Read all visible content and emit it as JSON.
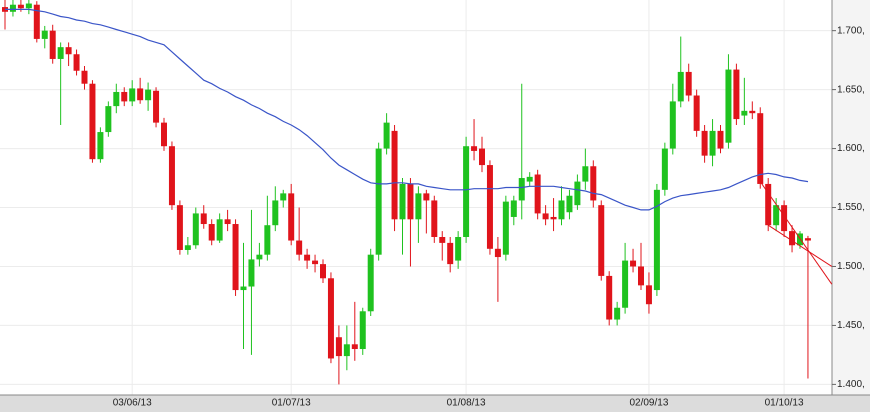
{
  "chart_data": {
    "type": "candlestick",
    "categories": [
      null,
      null,
      null,
      null,
      null,
      null,
      null,
      null,
      null,
      null,
      null,
      null,
      null,
      null,
      null,
      null,
      "03/06/13",
      null,
      null,
      null,
      null,
      null,
      null,
      null,
      null,
      null,
      null,
      null,
      null,
      null,
      null,
      null,
      null,
      null,
      null,
      null,
      "01/07/13",
      null,
      null,
      null,
      null,
      null,
      null,
      null,
      null,
      null,
      null,
      null,
      null,
      null,
      null,
      null,
      null,
      null,
      null,
      null,
      null,
      null,
      "01/08/13",
      null,
      null,
      null,
      null,
      null,
      null,
      null,
      null,
      null,
      null,
      null,
      null,
      null,
      null,
      null,
      null,
      null,
      null,
      null,
      null,
      null,
      null,
      "02/09/13",
      null,
      null,
      null,
      null,
      null,
      null,
      null,
      null,
      null,
      null,
      null,
      null,
      null,
      null,
      null,
      null,
      "01/10/13",
      null,
      null,
      null
    ],
    "open": [
      1.72,
      1.716,
      1.722,
      1.719,
      1.722,
      1.693,
      1.7,
      1.676,
      1.686,
      1.68,
      1.666,
      1.655,
      1.591,
      1.614,
      1.636,
      1.648,
      1.64,
      1.651,
      1.641,
      1.649,
      1.622,
      1.602,
      1.552,
      1.514,
      1.518,
      1.545,
      1.536,
      1.522,
      1.54,
      1.536,
      1.48,
      1.483,
      1.506,
      1.51,
      1.535,
      1.556,
      1.562,
      1.522,
      1.51,
      1.505,
      1.502,
      1.49,
      1.44,
      1.424,
      1.434,
      1.43,
      1.462,
      1.51,
      1.6,
      1.615,
      1.54,
      1.57,
      1.54,
      1.562,
      1.556,
      1.525,
      1.52,
      1.505,
      1.525,
      1.602,
      1.6,
      1.586,
      1.515,
      1.51,
      1.542,
      1.556,
      1.572,
      1.578,
      1.545,
      1.542,
      1.54,
      1.546,
      1.552,
      1.572,
      1.585,
      1.552,
      1.492,
      1.455,
      1.465,
      1.505,
      1.5,
      1.484,
      1.48,
      1.565,
      1.6,
      1.64,
      1.665,
      1.645,
      1.615,
      1.594,
      1.615,
      1.605,
      1.667,
      1.628,
      1.632,
      1.63,
      1.57,
      1.535,
      1.552,
      1.53,
      1.518,
      1.524
    ],
    "high": [
      1.726,
      1.726,
      1.726,
      1.726,
      1.725,
      1.704,
      1.705,
      1.69,
      1.69,
      1.684,
      1.67,
      1.658,
      1.618,
      1.64,
      1.655,
      1.652,
      1.658,
      1.66,
      1.656,
      1.652,
      1.626,
      1.606,
      1.556,
      1.525,
      1.55,
      1.552,
      1.54,
      1.545,
      1.548,
      1.54,
      1.52,
      1.548,
      1.52,
      1.56,
      1.568,
      1.565,
      1.57,
      1.55,
      1.515,
      1.51,
      1.506,
      1.495,
      1.45,
      1.45,
      1.47,
      1.465,
      1.515,
      1.605,
      1.63,
      1.62,
      1.575,
      1.575,
      1.568,
      1.565,
      1.56,
      1.53,
      1.525,
      1.53,
      1.61,
      1.625,
      1.61,
      1.59,
      1.525,
      1.56,
      1.56,
      1.655,
      1.58,
      1.582,
      1.552,
      1.558,
      1.568,
      1.565,
      1.578,
      1.6,
      1.59,
      1.556,
      1.496,
      1.47,
      1.52,
      1.515,
      1.52,
      1.495,
      1.57,
      1.605,
      1.655,
      1.695,
      1.672,
      1.65,
      1.62,
      1.625,
      1.62,
      1.68,
      1.672,
      1.66,
      1.64,
      1.635,
      1.575,
      1.558,
      1.556,
      1.535,
      1.53,
      1.526
    ],
    "low": [
      1.701,
      1.712,
      1.716,
      1.714,
      1.69,
      1.685,
      1.672,
      1.62,
      1.67,
      1.662,
      1.65,
      1.588,
      1.588,
      1.61,
      1.63,
      1.636,
      1.636,
      1.638,
      1.632,
      1.618,
      1.598,
      1.548,
      1.51,
      1.51,
      1.515,
      1.532,
      1.518,
      1.52,
      1.53,
      1.475,
      1.43,
      1.425,
      1.5,
      1.505,
      1.53,
      1.55,
      1.518,
      1.505,
      1.498,
      1.495,
      1.486,
      1.418,
      1.4,
      1.412,
      1.42,
      1.425,
      1.458,
      1.505,
      1.595,
      1.53,
      1.51,
      1.5,
      1.52,
      1.528,
      1.52,
      1.505,
      1.495,
      1.498,
      1.52,
      1.59,
      1.58,
      1.51,
      1.47,
      1.505,
      1.535,
      1.54,
      1.568,
      1.54,
      1.535,
      1.53,
      1.535,
      1.54,
      1.548,
      1.565,
      1.55,
      1.488,
      1.45,
      1.45,
      1.46,
      1.495,
      1.48,
      1.46,
      1.475,
      1.56,
      1.595,
      1.635,
      1.64,
      1.61,
      1.588,
      1.585,
      1.596,
      1.6,
      1.62,
      1.62,
      1.625,
      1.566,
      1.53,
      1.53,
      1.525,
      1.512,
      1.515,
      1.405
    ],
    "close": [
      1.716,
      1.722,
      1.719,
      1.723,
      1.693,
      1.7,
      1.676,
      1.686,
      1.68,
      1.666,
      1.655,
      1.591,
      1.614,
      1.636,
      1.648,
      1.64,
      1.651,
      1.641,
      1.65,
      1.622,
      1.602,
      1.552,
      1.514,
      1.518,
      1.545,
      1.536,
      1.522,
      1.54,
      1.536,
      1.48,
      1.483,
      1.506,
      1.51,
      1.535,
      1.556,
      1.562,
      1.522,
      1.51,
      1.505,
      1.502,
      1.49,
      1.422,
      1.424,
      1.434,
      1.43,
      1.462,
      1.51,
      1.6,
      1.622,
      1.54,
      1.57,
      1.54,
      1.562,
      1.556,
      1.525,
      1.52,
      1.502,
      1.525,
      1.602,
      1.598,
      1.586,
      1.515,
      1.508,
      1.555,
      1.556,
      1.575,
      1.576,
      1.545,
      1.54,
      1.54,
      1.556,
      1.56,
      1.572,
      1.585,
      1.556,
      1.492,
      1.455,
      1.465,
      1.505,
      1.5,
      1.484,
      1.468,
      1.565,
      1.6,
      1.64,
      1.665,
      1.645,
      1.615,
      1.594,
      1.615,
      1.6,
      1.667,
      1.625,
      1.632,
      1.63,
      1.57,
      1.535,
      1.552,
      1.53,
      1.518,
      1.528,
      1.522
    ],
    "up_color": "#1fc21f",
    "down_color": "#e0141b",
    "moving_average": {
      "color": "#3a55c8",
      "values": [
        1.718,
        1.718,
        1.718,
        1.718,
        1.717,
        1.716,
        1.714,
        1.712,
        1.711,
        1.709,
        1.708,
        1.706,
        1.705,
        1.703,
        1.701,
        1.699,
        1.697,
        1.695,
        1.692,
        1.69,
        1.688,
        1.682,
        1.676,
        1.67,
        1.664,
        1.658,
        1.655,
        1.651,
        1.648,
        1.644,
        1.641,
        1.637,
        1.634,
        1.63,
        1.627,
        1.623,
        1.62,
        1.616,
        1.611,
        1.605,
        1.599,
        1.592,
        1.586,
        1.582,
        1.578,
        1.574,
        1.571,
        1.57,
        1.57,
        1.571,
        1.571,
        1.57,
        1.57,
        1.568,
        1.567,
        1.566,
        1.565,
        1.565,
        1.565,
        1.566,
        1.566,
        1.566,
        1.566,
        1.567,
        1.567,
        1.567,
        1.568,
        1.568,
        1.568,
        1.568,
        1.567,
        1.566,
        1.565,
        1.564,
        1.562,
        1.561,
        1.558,
        1.555,
        1.552,
        1.55,
        1.548,
        1.548,
        1.551,
        1.555,
        1.558,
        1.56,
        1.561,
        1.562,
        1.563,
        1.564,
        1.565,
        1.567,
        1.57,
        1.573,
        1.576,
        1.578,
        1.579,
        1.578,
        1.576,
        1.575,
        1.573,
        1.572
      ]
    },
    "trendlines": [
      {
        "color": "#e0141b",
        "x": [
          95,
          104
        ],
        "y": [
          1.572,
          1.485
        ]
      },
      {
        "color": "#e0141b",
        "x": [
          96,
          104
        ],
        "y": [
          1.535,
          1.5
        ]
      }
    ],
    "ylim": [
      1.391,
      1.726
    ],
    "yticks": [
      {
        "value": 1.4,
        "label": "1.400,"
      },
      {
        "value": 1.45,
        "label": "1.450,"
      },
      {
        "value": 1.5,
        "label": "1.500,"
      },
      {
        "value": 1.55,
        "label": "1.550,"
      },
      {
        "value": 1.6,
        "label": "1.600,"
      },
      {
        "value": 1.65,
        "label": "1.650,"
      },
      {
        "value": 1.7,
        "label": "1.700,"
      }
    ],
    "grid": true
  }
}
